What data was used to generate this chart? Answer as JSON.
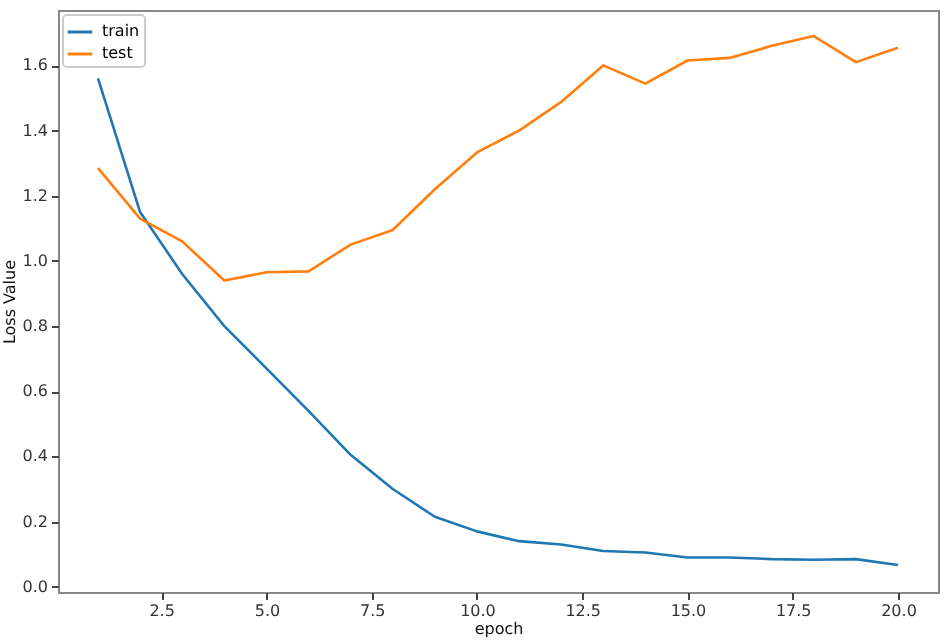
{
  "chart_data": {
    "type": "line",
    "xlabel": "epoch",
    "ylabel": "Loss Value",
    "x": [
      1,
      2,
      3,
      4,
      5,
      6,
      7,
      8,
      9,
      10,
      11,
      12,
      13,
      14,
      15,
      16,
      17,
      18,
      19,
      20
    ],
    "series": [
      {
        "name": "train",
        "color": "#1f77b4",
        "values": [
          1.56,
          1.15,
          0.96,
          0.8,
          0.67,
          0.54,
          0.405,
          0.3,
          0.215,
          0.17,
          0.14,
          0.13,
          0.11,
          0.105,
          0.09,
          0.09,
          0.085,
          0.083,
          0.085,
          0.067
        ]
      },
      {
        "name": "test",
        "color": "#ff7f0e",
        "values": [
          1.285,
          1.13,
          1.06,
          0.94,
          0.965,
          0.968,
          1.05,
          1.095,
          1.22,
          1.333,
          1.4,
          1.488,
          1.6,
          1.544,
          1.615,
          1.623,
          1.66,
          1.69,
          1.61,
          1.654
        ]
      }
    ],
    "xlim": [
      0.05,
      20.95
    ],
    "xticks": [
      {
        "value": 2.5,
        "label": "2.5"
      },
      {
        "value": 5,
        "label": "5.0"
      },
      {
        "value": 7.5,
        "label": "7.5"
      },
      {
        "value": 10,
        "label": "10.0"
      },
      {
        "value": 12.5,
        "label": "12.5"
      },
      {
        "value": 15,
        "label": "15.0"
      },
      {
        "value": 17.5,
        "label": "17.5"
      },
      {
        "value": 20,
        "label": "20.0"
      }
    ],
    "ylim": [
      -0.016,
      1.77
    ],
    "yticks": [
      {
        "value": 0,
        "label": "0.0"
      },
      0.2,
      0.4,
      0.6,
      0.8,
      {
        "value": 1,
        "label": "1.0"
      },
      1.2,
      1.4,
      1.6
    ],
    "grid": false,
    "legend": "top left",
    "marker": "none",
    "line_style": "solid"
  }
}
